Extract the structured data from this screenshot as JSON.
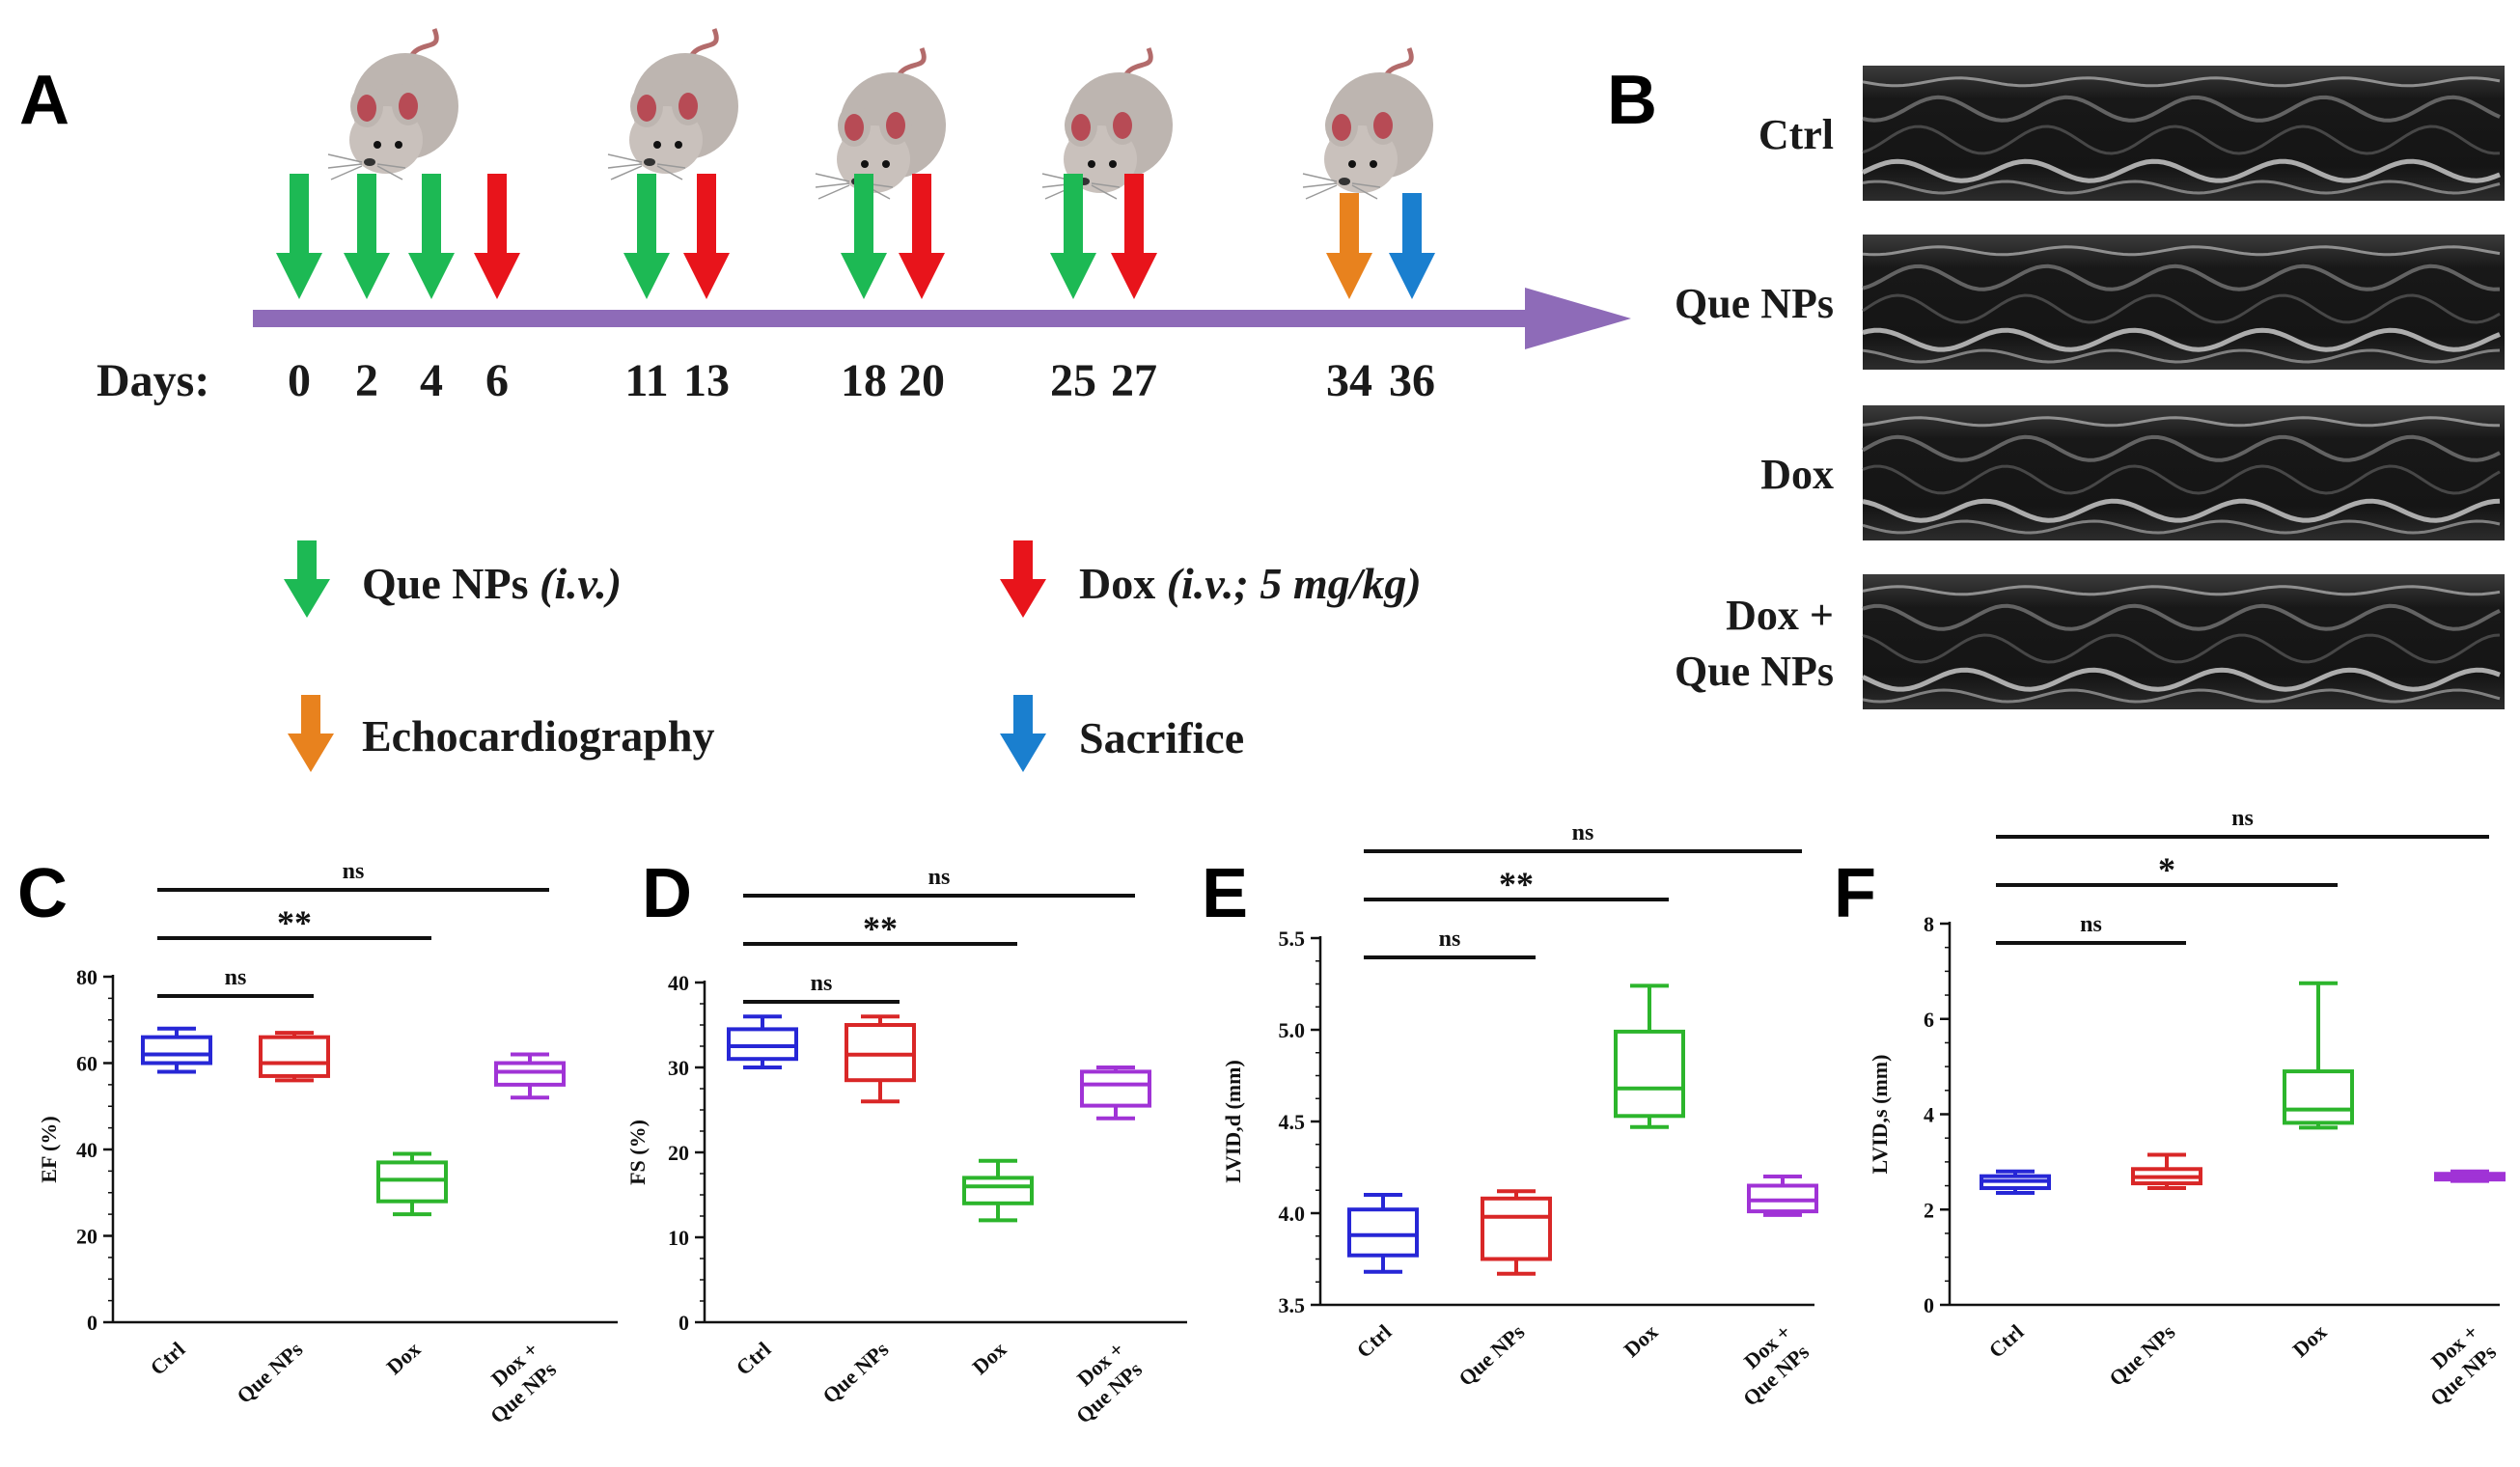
{
  "panel_labels": {
    "a": "A",
    "b": "B",
    "c": "C",
    "d": "D",
    "e": "E",
    "f": "F"
  },
  "timeline": {
    "days_label": "Days:",
    "days": [
      "0",
      "2",
      "4",
      "6",
      "11",
      "13",
      "18",
      "20",
      "25",
      "27",
      "34",
      "36"
    ],
    "arrow_colors": {
      "que": "#1db954",
      "dox": "#e8141b",
      "echo": "#e8821e",
      "sacrifice": "#1a7fcf",
      "axis": "#8e6bb8"
    },
    "legend": {
      "que_main": "Que NPs ",
      "que_italic": "(i.v.)",
      "dox_main": "Dox ",
      "dox_italic": "(i.v.; 5 mg/kg)",
      "echo": "Echocardiography",
      "sacrifice": "Sacrifice"
    }
  },
  "echo_panel": {
    "rows": [
      {
        "label_lines": [
          "Ctrl"
        ]
      },
      {
        "label_lines": [
          "Que NPs"
        ]
      },
      {
        "label_lines": [
          "Dox"
        ]
      },
      {
        "label_lines": [
          "Dox +",
          "Que NPs"
        ]
      }
    ]
  },
  "group_colors": [
    "#2727d6",
    "#d92727",
    "#2cb52c",
    "#a033d6"
  ],
  "chart_data": [
    {
      "panel": "C",
      "type": "box",
      "ylabel": "EF (%)",
      "ylim": [
        0,
        80
      ],
      "yticks": [
        "0",
        "20",
        "40",
        "60",
        "80"
      ],
      "categories": [
        "Ctrl",
        "Que NPs",
        "Dox",
        "Dox +\nQue NPs"
      ],
      "boxes": [
        {
          "min": 58,
          "q1": 60,
          "median": 62,
          "q3": 66,
          "max": 68
        },
        {
          "min": 56,
          "q1": 57,
          "median": 60,
          "q3": 66,
          "max": 67
        },
        {
          "min": 25,
          "q1": 28,
          "median": 33,
          "q3": 37,
          "max": 39
        },
        {
          "min": 52,
          "q1": 55,
          "median": 58,
          "q3": 60,
          "max": 62
        }
      ],
      "comparisons": [
        {
          "from": 0,
          "to": 3,
          "label": "ns"
        },
        {
          "from": 0,
          "to": 2,
          "label": "**"
        },
        {
          "from": 0,
          "to": 1,
          "label": "ns"
        }
      ]
    },
    {
      "panel": "D",
      "type": "box",
      "ylabel": "FS (%)",
      "ylim": [
        0,
        40
      ],
      "yticks": [
        "0",
        "10",
        "20",
        "30",
        "40"
      ],
      "categories": [
        "Ctrl",
        "Que NPs",
        "Dox",
        "Dox +\nQue NPs"
      ],
      "boxes": [
        {
          "min": 30,
          "q1": 31,
          "median": 32.5,
          "q3": 34.5,
          "max": 36
        },
        {
          "min": 26,
          "q1": 28.5,
          "median": 31.5,
          "q3": 35,
          "max": 36
        },
        {
          "min": 12,
          "q1": 14,
          "median": 16,
          "q3": 17,
          "max": 19
        },
        {
          "min": 24,
          "q1": 25.5,
          "median": 28,
          "q3": 29.5,
          "max": 30
        }
      ],
      "comparisons": [
        {
          "from": 0,
          "to": 3,
          "label": "ns"
        },
        {
          "from": 0,
          "to": 2,
          "label": "**"
        },
        {
          "from": 0,
          "to": 1,
          "label": "ns"
        }
      ]
    },
    {
      "panel": "E",
      "type": "box",
      "ylabel": "LVID,d (mm)",
      "ylim": [
        3.5,
        5.5
      ],
      "yticks": [
        "3.5",
        "4.0",
        "4.5",
        "5.0",
        "5.5"
      ],
      "categories": [
        "Ctrl",
        "Que NPs",
        "Dox",
        "Dox +\nQue NPs"
      ],
      "boxes": [
        {
          "min": 3.68,
          "q1": 3.77,
          "median": 3.88,
          "q3": 4.02,
          "max": 4.1
        },
        {
          "min": 3.67,
          "q1": 3.75,
          "median": 3.98,
          "q3": 4.08,
          "max": 4.12
        },
        {
          "min": 4.47,
          "q1": 4.53,
          "median": 4.68,
          "q3": 4.99,
          "max": 5.24
        },
        {
          "min": 3.99,
          "q1": 4.01,
          "median": 4.07,
          "q3": 4.15,
          "max": 4.2
        }
      ],
      "comparisons": [
        {
          "from": 0,
          "to": 3,
          "label": "ns"
        },
        {
          "from": 0,
          "to": 2,
          "label": "**"
        },
        {
          "from": 0,
          "to": 1,
          "label": "ns"
        }
      ]
    },
    {
      "panel": "F",
      "type": "box",
      "ylabel": "LVID,s (mm)",
      "ylim": [
        0,
        8
      ],
      "yticks": [
        "0",
        "2",
        "4",
        "6",
        "8"
      ],
      "categories": [
        "Ctrl",
        "Que NPs",
        "Dox",
        "Dox +\nQue NPs"
      ],
      "boxes": [
        {
          "min": 2.35,
          "q1": 2.45,
          "median": 2.6,
          "q3": 2.7,
          "max": 2.8
        },
        {
          "min": 2.45,
          "q1": 2.55,
          "median": 2.68,
          "q3": 2.85,
          "max": 3.15
        },
        {
          "min": 3.72,
          "q1": 3.82,
          "median": 4.1,
          "q3": 4.9,
          "max": 6.75
        },
        {
          "min": 2.6,
          "q1": 2.63,
          "median": 2.68,
          "q3": 2.75,
          "max": 2.8
        }
      ],
      "comparisons": [
        {
          "from": 0,
          "to": 3,
          "label": "ns"
        },
        {
          "from": 0,
          "to": 2,
          "label": "*"
        },
        {
          "from": 0,
          "to": 1,
          "label": "ns"
        }
      ]
    }
  ]
}
